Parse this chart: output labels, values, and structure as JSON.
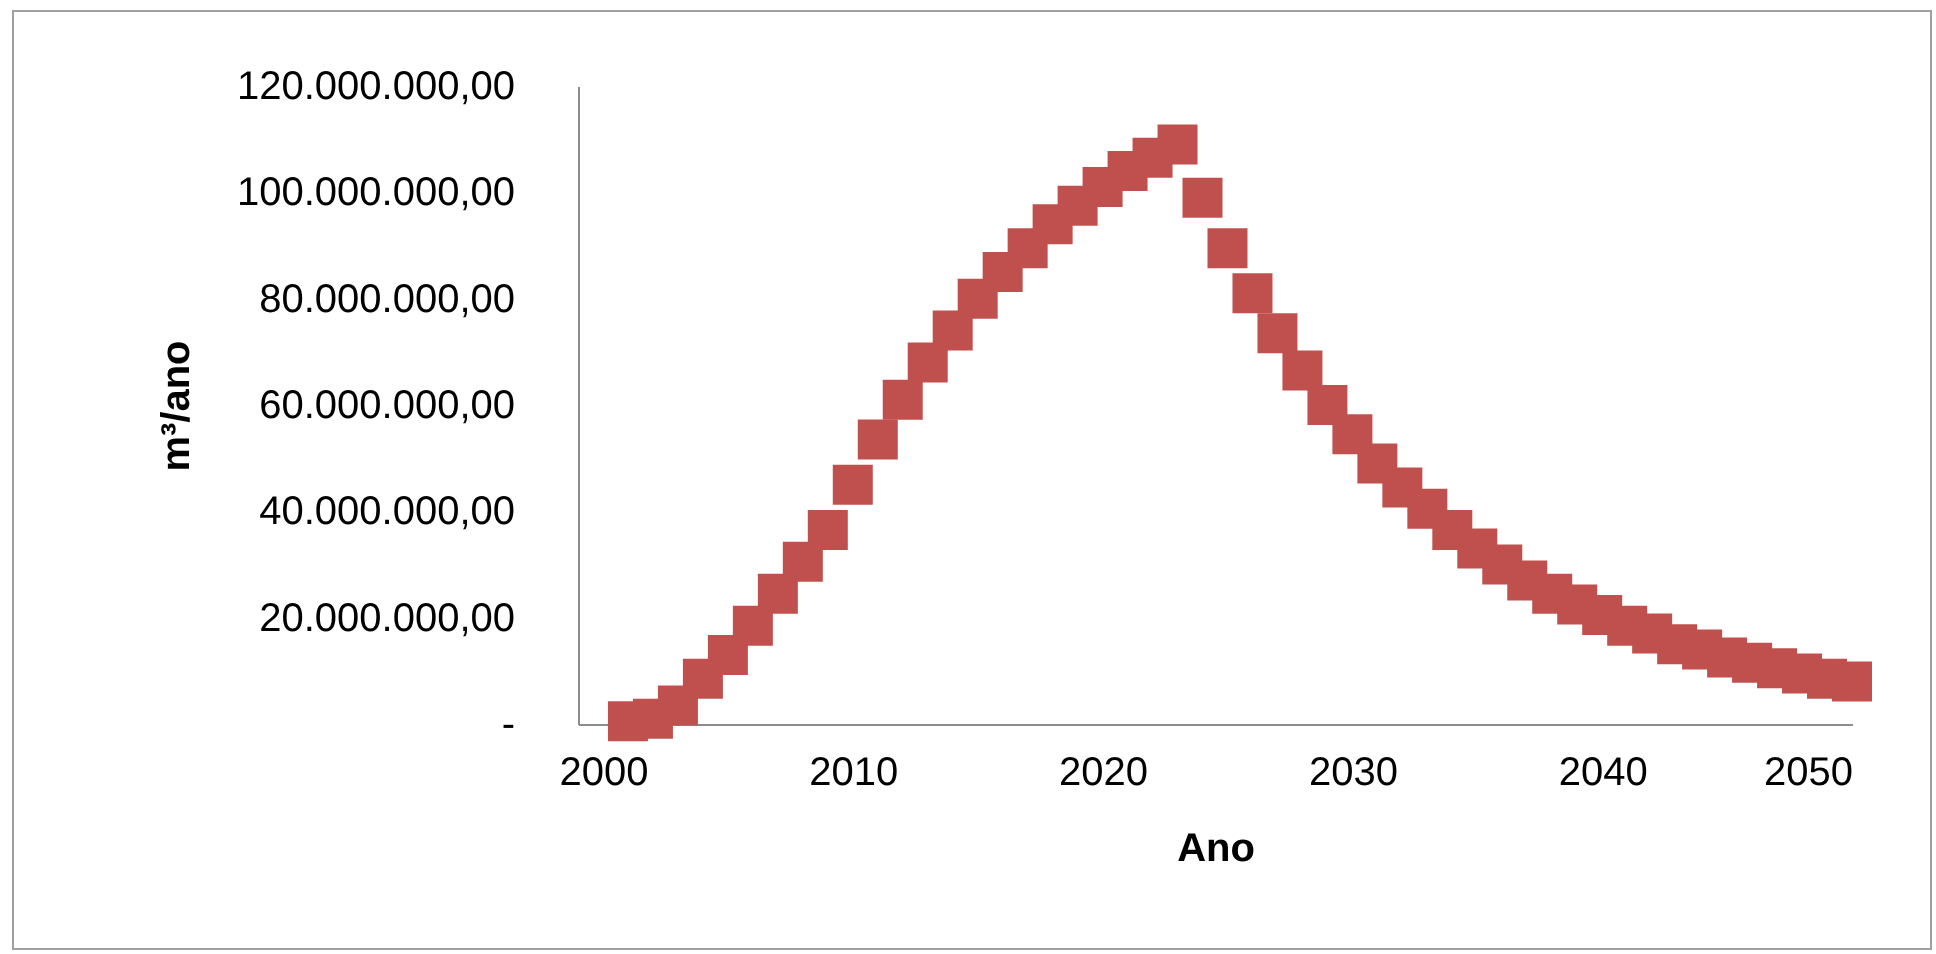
{
  "chart_data": {
    "type": "scatter",
    "xlabel": "Ano",
    "ylabel": "m³/ano",
    "marker": "square",
    "grid": false,
    "xlim": [
      1999,
      2050
    ],
    "xticks": [
      2000,
      2010,
      2020,
      2030,
      2040,
      2050
    ],
    "ylim": [
      0,
      120000000
    ],
    "yticks": [
      {
        "value": 0,
        "label": "-"
      },
      {
        "value": 20000000,
        "label": "20.000.000,00"
      },
      {
        "value": 40000000,
        "label": "40.000.000,00"
      },
      {
        "value": 60000000,
        "label": "60.000.000,00"
      },
      {
        "value": 80000000,
        "label": "80.000.000,00"
      },
      {
        "value": 100000000,
        "label": "100.000.000,00"
      },
      {
        "value": 120000000,
        "label": "120.000.000,00"
      }
    ],
    "x": [
      2001,
      2002,
      2003,
      2004,
      2005,
      2006,
      2007,
      2008,
      2009,
      2010,
      2011,
      2012,
      2013,
      2014,
      2015,
      2016,
      2017,
      2018,
      2019,
      2020,
      2021,
      2022,
      2023,
      2024,
      2025,
      2026,
      2027,
      2028,
      2029,
      2030,
      2031,
      2032,
      2033,
      2034,
      2035,
      2036,
      2037,
      2038,
      2039,
      2040,
      2041,
      2042,
      2043,
      2044,
      2045,
      2046,
      2047,
      2048,
      2049,
      2050
    ],
    "series": [
      {
        "color": "#c0504d",
        "values": [
          500000,
          1000000,
          3500000,
          8500000,
          13000000,
          18500000,
          24500000,
          30500000,
          36500000,
          45000000,
          53500000,
          61000000,
          68000000,
          74000000,
          80000000,
          85000000,
          89500000,
          94000000,
          97500000,
          101000000,
          104000000,
          106500000,
          109000000,
          99000000,
          89500000,
          81000000,
          73500000,
          66500000,
          60000000,
          54500000,
          49000000,
          44500000,
          40500000,
          36500000,
          33000000,
          30000000,
          27000000,
          24500000,
          22500000,
          20500000,
          18500000,
          17000000,
          15000000,
          14000000,
          12500000,
          11500000,
          10500000,
          9500000,
          8500000,
          8000000
        ]
      }
    ]
  }
}
